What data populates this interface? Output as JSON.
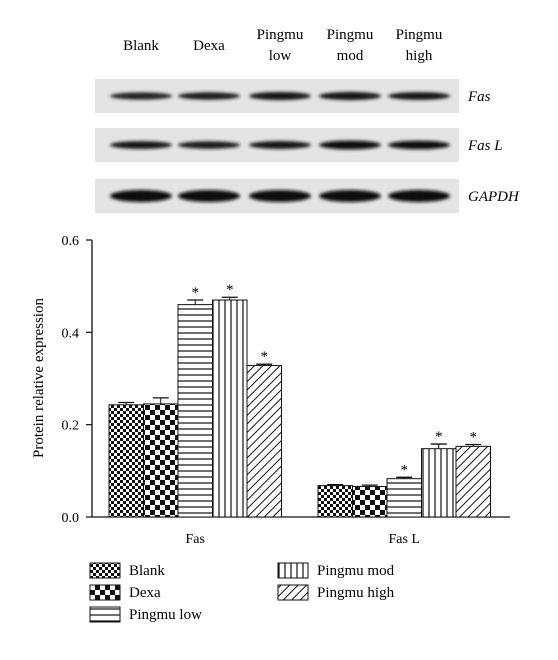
{
  "blot": {
    "lanes": [
      "Blank",
      "Dexa",
      "Pingmu low",
      "Pingmu mod",
      "Pingmu high"
    ],
    "rows": [
      {
        "label": "Fas",
        "intensity": [
          0.55,
          0.6,
          0.75,
          0.8,
          0.7
        ]
      },
      {
        "label": "Fas L",
        "intensity": [
          0.7,
          0.65,
          0.72,
          0.95,
          0.9
        ]
      },
      {
        "label": "GAPDH",
        "intensity": [
          1.0,
          1.0,
          1.0,
          1.0,
          1.0
        ]
      }
    ]
  },
  "chart_data": {
    "type": "bar",
    "categories": [
      "Fas",
      "Fas L"
    ],
    "ylabel": "Protein relative expression",
    "xlabel": "",
    "ylim": [
      0,
      0.6
    ],
    "yticks": [
      "0.0",
      "0.2",
      "0.4",
      "0.6"
    ],
    "significance_marker": "*",
    "series": [
      {
        "name": "Blank",
        "pattern": "checker-small",
        "values": [
          0.243,
          0.068
        ],
        "errors": [
          0.005,
          0.002
        ],
        "significant": [
          false,
          false
        ]
      },
      {
        "name": "Dexa",
        "pattern": "checker-large",
        "values": [
          0.245,
          0.066
        ],
        "errors": [
          0.013,
          0.003
        ],
        "significant": [
          false,
          false
        ]
      },
      {
        "name": "Pingmu low",
        "pattern": "horizontal-lines",
        "values": [
          0.46,
          0.083
        ],
        "errors": [
          0.01,
          0.003
        ],
        "significant": [
          true,
          true
        ]
      },
      {
        "name": "Pingmu mod",
        "pattern": "vertical-lines",
        "values": [
          0.47,
          0.148
        ],
        "errors": [
          0.006,
          0.01
        ],
        "significant": [
          true,
          true
        ]
      },
      {
        "name": "Pingmu high",
        "pattern": "diagonal-lines",
        "values": [
          0.328,
          0.153
        ],
        "errors": [
          0.003,
          0.004
        ],
        "significant": [
          true,
          true
        ]
      }
    ]
  }
}
